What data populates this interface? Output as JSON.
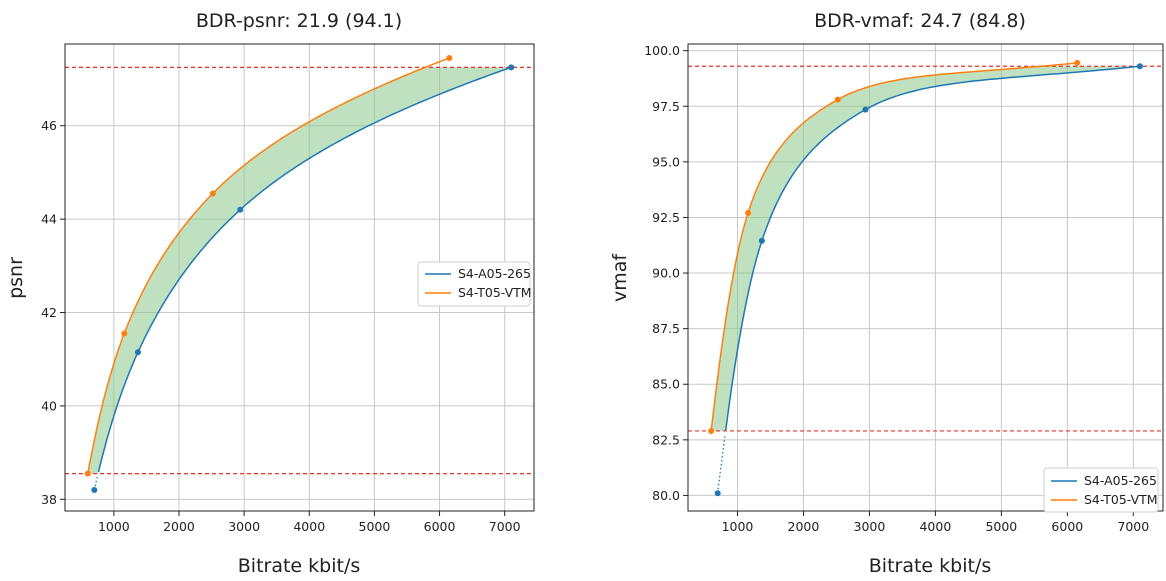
{
  "colors": {
    "series_a": "#1f77b4",
    "series_b": "#ff7f0e",
    "fill": "#8cc98c",
    "guide": "#e8302a",
    "grid": "#c8c8c8"
  },
  "chart_data": [
    {
      "type": "line",
      "title": "BDR-psnr: 21.9 (94.1)",
      "xlabel": "Bitrate kbit/s",
      "ylabel": "psnr",
      "xlim": [
        250,
        7450
      ],
      "ylim": [
        37.75,
        47.75
      ],
      "xticks": [
        1000,
        2000,
        3000,
        4000,
        5000,
        6000,
        7000
      ],
      "yticks": [
        38,
        40,
        42,
        44,
        46
      ],
      "xtick_labels": [
        "1000",
        "2000",
        "3000",
        "4000",
        "5000",
        "6000",
        "7000"
      ],
      "ytick_labels": [
        "38",
        "40",
        "42",
        "44",
        "46"
      ],
      "grid": true,
      "legend_position": "center-right",
      "hlines": [
        47.25,
        38.55
      ],
      "series": [
        {
          "name": "S4-A05-265",
          "x": [
            700,
            1370,
            2940,
            7100
          ],
          "y": [
            38.2,
            41.15,
            44.2,
            47.25
          ]
        },
        {
          "name": "S4-T05-VTM",
          "x": [
            600,
            1160,
            2520,
            6150
          ],
          "y": [
            38.55,
            41.55,
            44.55,
            47.45
          ]
        }
      ],
      "fill_between": "S4-A05-265 and S4-T05-VTM"
    },
    {
      "type": "line",
      "title": "BDR-vmaf: 24.7 (84.8)",
      "xlabel": "Bitrate kbit/s",
      "ylabel": "vmaf",
      "xlim": [
        250,
        7450
      ],
      "ylim": [
        79.3,
        100.3
      ],
      "xticks": [
        1000,
        2000,
        3000,
        4000,
        5000,
        6000,
        7000
      ],
      "yticks": [
        80.0,
        82.5,
        85.0,
        87.5,
        90.0,
        92.5,
        95.0,
        97.5,
        100.0
      ],
      "xtick_labels": [
        "1000",
        "2000",
        "3000",
        "4000",
        "5000",
        "6000",
        "7000"
      ],
      "ytick_labels": [
        "80.0",
        "82.5",
        "85.0",
        "87.5",
        "90.0",
        "92.5",
        "95.0",
        "97.5",
        "100.0"
      ],
      "grid": true,
      "legend_position": "lower-right",
      "hlines": [
        99.3,
        82.9
      ],
      "series": [
        {
          "name": "S4-A05-265",
          "x": [
            700,
            1370,
            2940,
            7100
          ],
          "y": [
            80.1,
            91.45,
            97.35,
            99.3
          ]
        },
        {
          "name": "S4-T05-VTM",
          "x": [
            600,
            1160,
            2520,
            6150
          ],
          "y": [
            82.9,
            92.7,
            97.8,
            99.45
          ]
        }
      ],
      "fill_between": "S4-A05-265 and S4-T05-VTM"
    }
  ]
}
